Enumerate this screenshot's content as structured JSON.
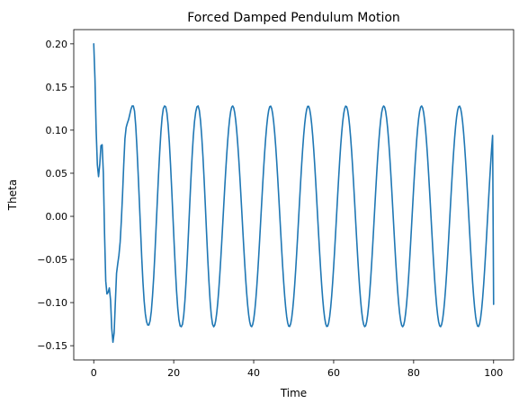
{
  "chart_data": {
    "type": "line",
    "title": "Forced Damped Pendulum Motion",
    "xlabel": "Time",
    "ylabel": "Theta",
    "xlim": [
      -5,
      105
    ],
    "ylim": [
      -0.1665,
      0.2165
    ],
    "x_ticks": [
      {
        "value": 0,
        "label": "0"
      },
      {
        "value": 20,
        "label": "20"
      },
      {
        "value": 40,
        "label": "40"
      },
      {
        "value": 60,
        "label": "60"
      },
      {
        "value": 80,
        "label": "80"
      },
      {
        "value": 100,
        "label": "100"
      }
    ],
    "y_ticks": [
      {
        "value": -0.15,
        "label": "−0.15"
      },
      {
        "value": -0.1,
        "label": "−0.10"
      },
      {
        "value": -0.05,
        "label": "−0.05"
      },
      {
        "value": 0.0,
        "label": "0.00"
      },
      {
        "value": 0.05,
        "label": "0.05"
      },
      {
        "value": 0.1,
        "label": "0.10"
      },
      {
        "value": 0.15,
        "label": "0.15"
      },
      {
        "value": 0.2,
        "label": "0.20"
      }
    ],
    "grid": false,
    "legend": "none",
    "series": [
      {
        "color": "#1f77b4",
        "points": [
          [
            0.0,
            0.2
          ],
          [
            0.3,
            0.16
          ],
          [
            0.6,
            0.1
          ],
          [
            0.9,
            0.06
          ],
          [
            1.2,
            0.046
          ],
          [
            1.5,
            0.06
          ],
          [
            1.8,
            0.082
          ],
          [
            2.1,
            0.083
          ],
          [
            2.4,
            0.05
          ],
          [
            2.7,
            -0.02
          ],
          [
            3.0,
            -0.075
          ],
          [
            3.3,
            -0.09
          ],
          [
            3.6,
            -0.088
          ],
          [
            3.9,
            -0.083
          ],
          [
            4.2,
            -0.097
          ],
          [
            4.5,
            -0.13
          ],
          [
            4.8,
            -0.146
          ],
          [
            5.1,
            -0.135
          ],
          [
            5.4,
            -0.1
          ],
          [
            5.7,
            -0.066
          ],
          [
            6.0,
            -0.055
          ],
          [
            6.3,
            -0.045
          ],
          [
            6.6,
            -0.03
          ],
          [
            6.9,
            -0.005
          ],
          [
            7.2,
            0.025
          ],
          [
            7.5,
            0.06
          ],
          [
            7.8,
            0.09
          ],
          [
            8.1,
            0.103
          ],
          [
            8.4,
            0.108
          ],
          [
            8.7,
            0.112
          ],
          [
            9.0,
            0.118
          ],
          [
            9.3,
            0.124
          ],
          [
            9.6,
            0.128
          ],
          [
            9.9,
            0.128
          ],
          [
            10.2,
            0.122
          ],
          [
            10.5,
            0.105
          ],
          [
            10.8,
            0.08
          ],
          [
            11.1,
            0.05
          ],
          [
            11.4,
            0.018
          ],
          [
            11.7,
            -0.015
          ],
          [
            12.0,
            -0.048
          ],
          [
            12.3,
            -0.076
          ],
          [
            12.6,
            -0.098
          ],
          [
            12.9,
            -0.113
          ],
          [
            13.2,
            -0.122
          ],
          [
            13.5,
            -0.126
          ],
          [
            13.8,
            -0.126
          ],
          [
            14.1,
            -0.121
          ],
          [
            14.4,
            -0.11
          ],
          [
            14.7,
            -0.092
          ],
          [
            15.0,
            -0.07
          ],
          [
            15.3,
            -0.043
          ],
          [
            15.6,
            -0.012
          ],
          [
            15.9,
            0.018
          ],
          [
            16.2,
            0.048
          ],
          [
            16.5,
            0.075
          ],
          [
            16.8,
            0.098
          ],
          [
            17.1,
            0.115
          ],
          [
            17.4,
            0.125
          ],
          [
            17.7,
            0.128
          ],
          [
            18.0,
            0.127
          ],
          [
            18.3,
            0.12
          ],
          [
            18.6,
            0.106
          ],
          [
            18.9,
            0.086
          ],
          [
            19.2,
            0.06
          ],
          [
            19.5,
            0.031
          ],
          [
            19.8,
            0.0
          ],
          [
            20.1,
            -0.031
          ],
          [
            20.4,
            -0.06
          ],
          [
            20.7,
            -0.086
          ],
          [
            21.0,
            -0.106
          ],
          [
            21.3,
            -0.12
          ],
          [
            21.6,
            -0.127
          ],
          [
            21.9,
            -0.128
          ],
          [
            22.2,
            -0.125
          ],
          [
            22.5,
            -0.115
          ],
          [
            22.8,
            -0.098
          ],
          [
            23.1,
            -0.075
          ],
          [
            23.4,
            -0.048
          ],
          [
            23.7,
            -0.018
          ],
          [
            24.0,
            0.013
          ],
          [
            24.3,
            0.043
          ],
          [
            24.6,
            0.07
          ],
          [
            24.9,
            0.093
          ],
          [
            25.2,
            0.11
          ],
          [
            25.5,
            0.121
          ],
          [
            25.8,
            0.127
          ],
          [
            26.1,
            0.128
          ],
          [
            26.4,
            0.123
          ],
          [
            26.7,
            0.111
          ],
          [
            27.0,
            0.093
          ],
          [
            27.3,
            0.07
          ],
          [
            27.6,
            0.043
          ],
          [
            27.9,
            0.013
          ],
          [
            28.2,
            -0.018
          ],
          [
            28.5,
            -0.048
          ],
          [
            28.8,
            -0.075
          ],
          [
            29.1,
            -0.098
          ],
          [
            29.4,
            -0.115
          ],
          [
            29.7,
            -0.125
          ],
          [
            30.0,
            -0.128
          ]
        ],
        "continuation": {
          "from_x": 30.0,
          "to_x": 100.0,
          "step": 0.25,
          "amplitude": 0.128,
          "period": 9.45,
          "phase_zero_x": 30.0,
          "phase_zero_value": -0.128,
          "end_value": -0.102
        }
      }
    ]
  }
}
